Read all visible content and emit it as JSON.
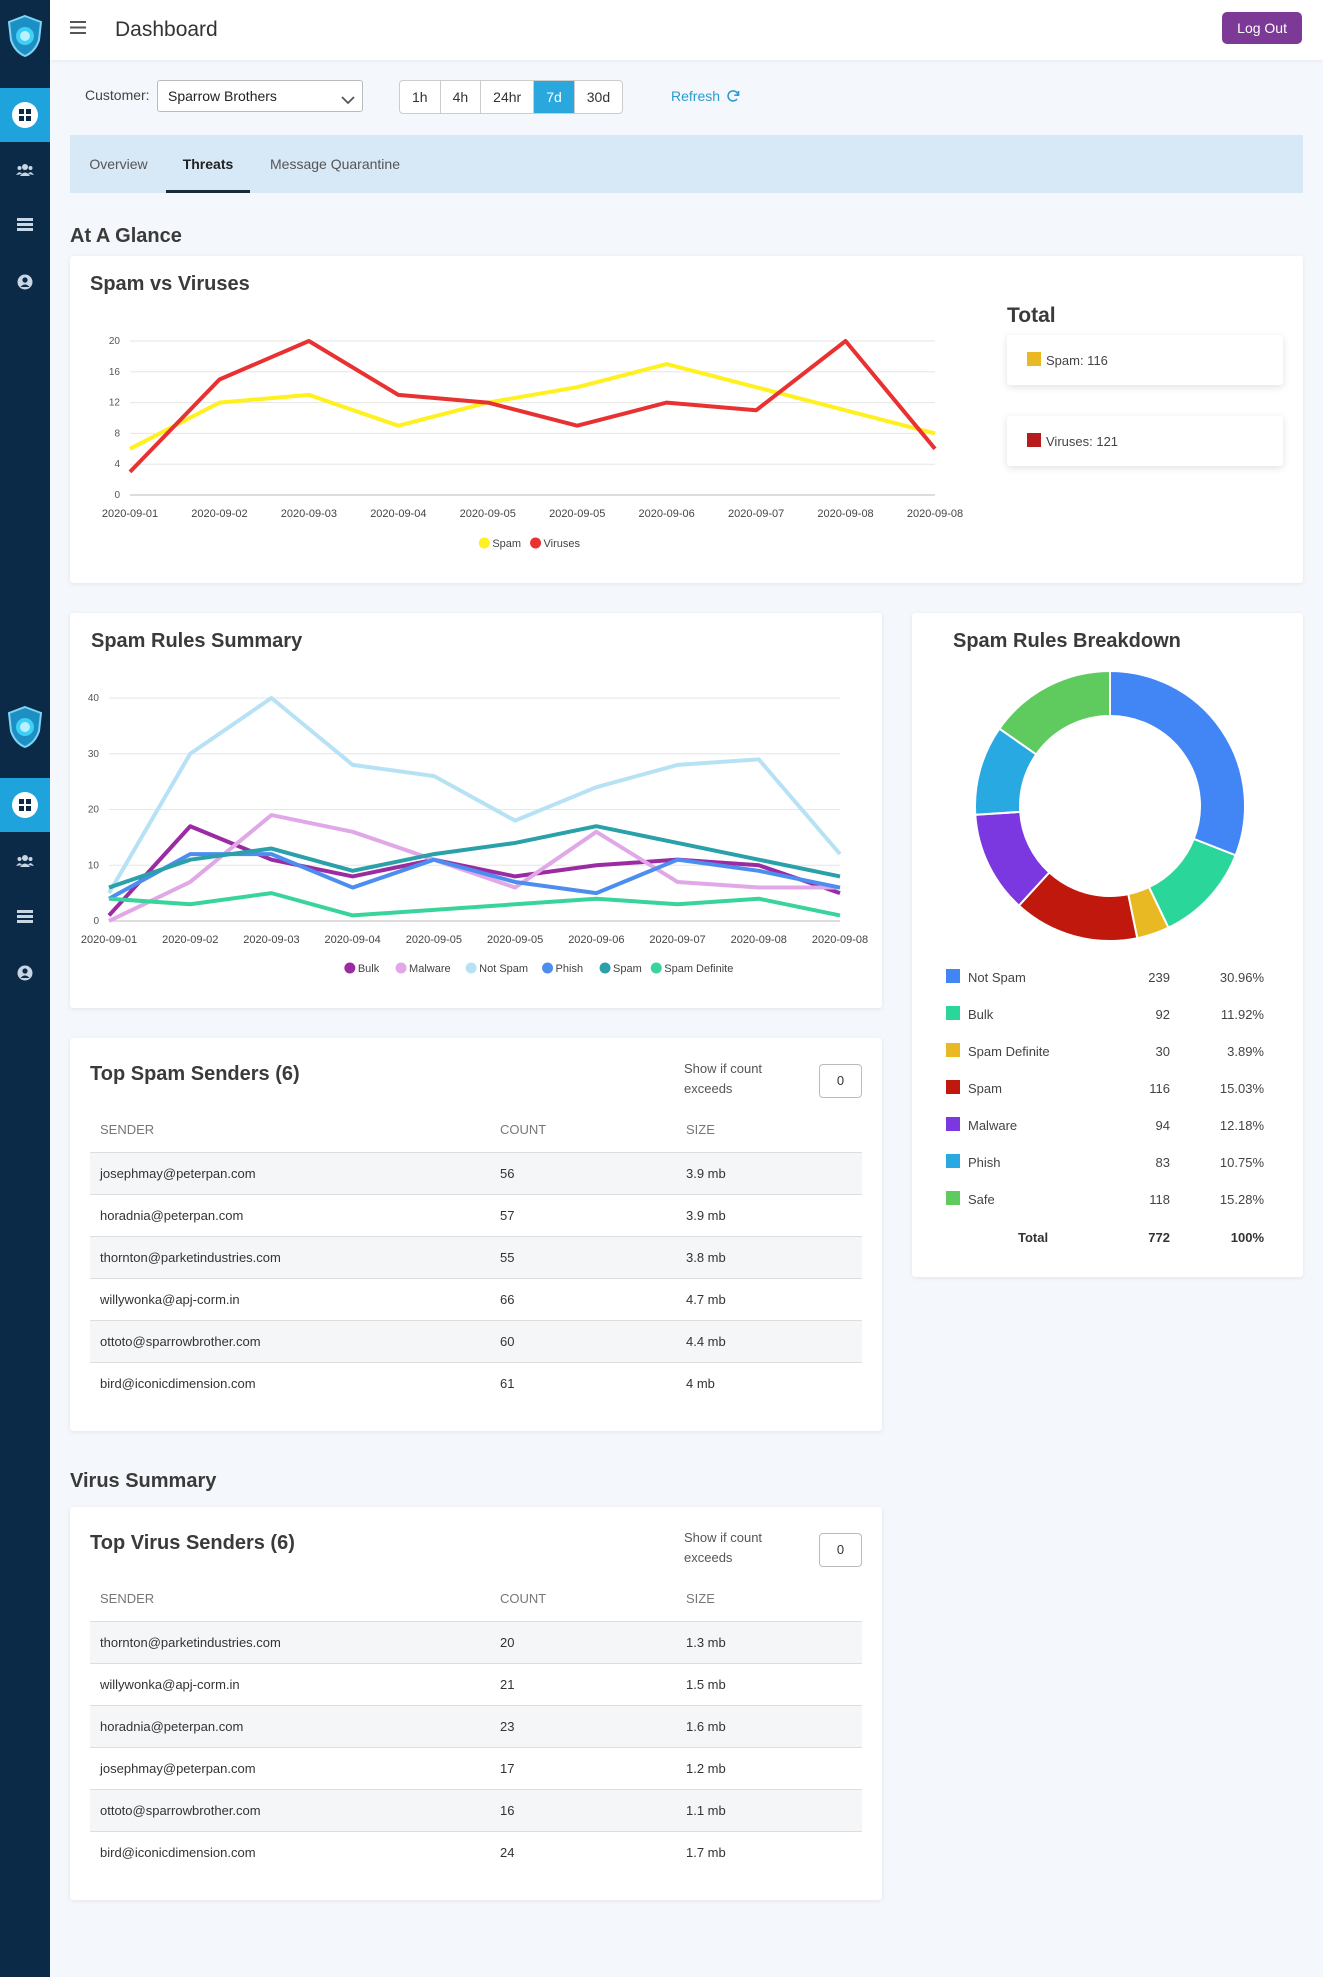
{
  "header": {
    "title": "Dashboard",
    "logout_label": "Log Out"
  },
  "sidebar": {
    "items": [
      {
        "name": "dashboard",
        "icon": "grid-icon",
        "active": true
      },
      {
        "name": "users",
        "icon": "users-icon"
      },
      {
        "name": "servers",
        "icon": "server-icon"
      },
      {
        "name": "account",
        "icon": "user-circle-icon"
      }
    ]
  },
  "filters": {
    "customer_label": "Customer:",
    "customer_value": "Sparrow Brothers",
    "ranges": [
      "1h",
      "4h",
      "24hr",
      "7d",
      "30d"
    ],
    "active_range": "7d",
    "refresh_label": "Refresh"
  },
  "tabs": [
    {
      "label": "Overview"
    },
    {
      "label": "Threats",
      "active": true
    },
    {
      "label": "Message Quarantine"
    }
  ],
  "sections": {
    "at_a_glance": "At A Glance",
    "virus_summary": "Virus Summary"
  },
  "spam_vs_viruses": {
    "title": "Spam vs Viruses",
    "total_title": "Total",
    "totals": [
      {
        "label": "Spam: 116",
        "color": "#e8b923"
      },
      {
        "label": "Viruses: 121",
        "color": "#b71c1c"
      }
    ]
  },
  "spam_rules_summary": {
    "title": "Spam Rules Summary"
  },
  "spam_rules_breakdown": {
    "title": "Spam Rules Breakdown",
    "rows": [
      {
        "name": "Not Spam",
        "count": "239",
        "percent": "30.96%",
        "color": "#4285f4"
      },
      {
        "name": "Bulk",
        "count": "92",
        "percent": "11.92%",
        "color": "#2bd69b"
      },
      {
        "name": "Spam Definite",
        "count": "30",
        "percent": "3.89%",
        "color": "#e8b923"
      },
      {
        "name": "Spam",
        "count": "116",
        "percent": "15.03%",
        "color": "#c0180c"
      },
      {
        "name": "Malware",
        "count": "94",
        "percent": "12.18%",
        "color": "#7c38e0"
      },
      {
        "name": "Phish",
        "count": "83",
        "percent": "10.75%",
        "color": "#28a9e1"
      },
      {
        "name": "Safe",
        "count": "118",
        "percent": "15.28%",
        "color": "#5fcb5f"
      }
    ],
    "total": {
      "label": "Total",
      "count": "772",
      "percent": "100%"
    }
  },
  "top_spam_senders": {
    "title": "Top Spam Senders (6)",
    "filter_label": "Show if count exceeds",
    "filter_value": "0",
    "columns": [
      "SENDER",
      "COUNT",
      "SIZE"
    ],
    "rows": [
      {
        "sender": "josephmay@peterpan.com",
        "count": "56",
        "size": "3.9 mb"
      },
      {
        "sender": "horadnia@peterpan.com",
        "count": "57",
        "size": "3.9 mb"
      },
      {
        "sender": "thornton@parketindustries.com",
        "count": "55",
        "size": "3.8 mb"
      },
      {
        "sender": "willywonka@apj-corm.in",
        "count": "66",
        "size": "4.7 mb"
      },
      {
        "sender": "ottoto@sparrowbrother.com",
        "count": "60",
        "size": "4.4 mb"
      },
      {
        "sender": "bird@iconicdimension.com",
        "count": "61",
        "size": "4 mb"
      }
    ]
  },
  "top_virus_senders": {
    "title": "Top Virus Senders (6)",
    "filter_label": "Show if count exceeds",
    "filter_value": "0",
    "columns": [
      "SENDER",
      "COUNT",
      "SIZE"
    ],
    "rows": [
      {
        "sender": "thornton@parketindustries.com",
        "count": "20",
        "size": "1.3 mb"
      },
      {
        "sender": "willywonka@apj-corm.in",
        "count": "21",
        "size": "1.5 mb"
      },
      {
        "sender": "horadnia@peterpan.com",
        "count": "23",
        "size": "1.6 mb"
      },
      {
        "sender": "josephmay@peterpan.com",
        "count": "17",
        "size": "1.2 mb"
      },
      {
        "sender": "ottoto@sparrowbrother.com",
        "count": "16",
        "size": "1.1 mb"
      },
      {
        "sender": "bird@iconicdimension.com",
        "count": "24",
        "size": "1.7 mb"
      }
    ]
  },
  "chart_data": [
    {
      "type": "line",
      "title": "Spam vs Viruses",
      "x": [
        "2020-09-01",
        "2020-09-02",
        "2020-09-03",
        "2020-09-04",
        "2020-09-05",
        "2020-09-05",
        "2020-09-06",
        "2020-09-07",
        "2020-09-08",
        "2020-09-08"
      ],
      "yticks": [
        0,
        4,
        8,
        12,
        16,
        20
      ],
      "ylim": [
        0,
        20
      ],
      "legend": "bottom",
      "series": [
        {
          "name": "Spam",
          "color": "#fff01f",
          "values": [
            6,
            12,
            13,
            9,
            12,
            14,
            17,
            14,
            11,
            8
          ]
        },
        {
          "name": "Viruses",
          "color": "#e83232",
          "values": [
            3,
            15,
            20,
            13,
            12,
            9,
            12,
            11,
            20,
            6
          ]
        }
      ]
    },
    {
      "type": "line",
      "title": "Spam Rules Summary",
      "x": [
        "2020-09-01",
        "2020-09-02",
        "2020-09-03",
        "2020-09-04",
        "2020-09-05",
        "2020-09-05",
        "2020-09-06",
        "2020-09-07",
        "2020-09-08",
        "2020-09-08"
      ],
      "yticks": [
        0,
        10,
        20,
        30,
        40
      ],
      "ylim": [
        0,
        40
      ],
      "legend": "bottom",
      "series": [
        {
          "name": "Bulk",
          "color": "#9b2ba3",
          "values": [
            1,
            17,
            11,
            8,
            11,
            8,
            10,
            11,
            10,
            5
          ]
        },
        {
          "name": "Malware",
          "color": "#e0a8e6",
          "values": [
            0,
            7,
            19,
            16,
            11,
            6,
            16,
            7,
            6,
            6
          ]
        },
        {
          "name": "Not Spam",
          "color": "#b7e2f5",
          "values": [
            5,
            30,
            40,
            28,
            26,
            18,
            24,
            28,
            29,
            12
          ]
        },
        {
          "name": "Phish",
          "color": "#4c8ef0",
          "values": [
            4,
            12,
            12,
            6,
            11,
            7,
            5,
            11,
            9,
            6
          ]
        },
        {
          "name": "Spam",
          "color": "#2aa0a8",
          "values": [
            6,
            11,
            13,
            9,
            12,
            14,
            17,
            14,
            11,
            8
          ]
        },
        {
          "name": "Spam Definite",
          "color": "#39d49b",
          "values": [
            4,
            3,
            5,
            1,
            2,
            3,
            4,
            3,
            4,
            1
          ]
        }
      ]
    },
    {
      "type": "pie",
      "title": "Spam Rules Breakdown",
      "labels": [
        "Not Spam",
        "Bulk",
        "Spam Definite",
        "Spam",
        "Malware",
        "Phish",
        "Safe"
      ],
      "values": [
        239,
        92,
        30,
        116,
        94,
        83,
        118
      ],
      "colors": [
        "#4285f4",
        "#2bd69b",
        "#e8b923",
        "#c0180c",
        "#7c38e0",
        "#28a9e1",
        "#5fcb5f"
      ]
    }
  ]
}
